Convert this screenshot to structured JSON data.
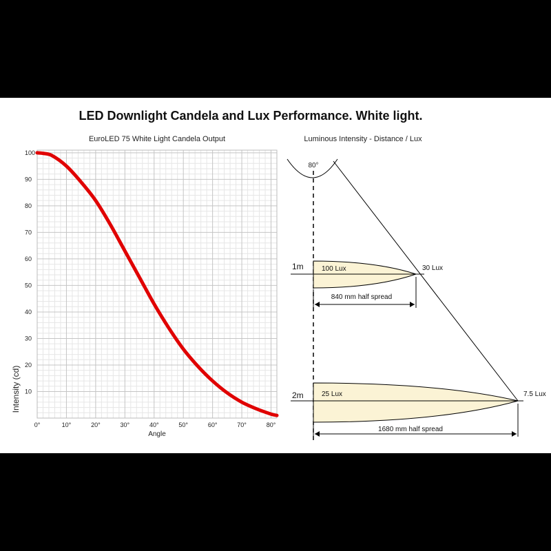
{
  "page_title": "LED Downlight Candela and Lux Performance. White light.",
  "chart_data": {
    "type": "line",
    "title": "EuroLED 75 White Light Candela Output",
    "xlabel": "Angle",
    "ylabel": "Intensity (cd)",
    "xlim": [
      0,
      82
    ],
    "ylim": [
      0,
      101
    ],
    "x_ticks": [
      0,
      10,
      20,
      30,
      40,
      50,
      60,
      70,
      80
    ],
    "x_tick_labels": [
      "0°",
      "10°",
      "20°",
      "30°",
      "40°",
      "50°",
      "60°",
      "70°",
      "80°"
    ],
    "y_ticks": [
      10,
      20,
      30,
      40,
      50,
      60,
      70,
      80,
      90,
      100
    ],
    "y_tick_labels": [
      "10",
      "20",
      "30",
      "40",
      "50",
      "60",
      "70",
      "80",
      "90",
      "100"
    ],
    "grid": true,
    "series": [
      {
        "color": "#e00000",
        "x": [
          0,
          2,
          5,
          10,
          15,
          20,
          25,
          30,
          35,
          40,
          45,
          50,
          55,
          60,
          65,
          70,
          75,
          80,
          82
        ],
        "y": [
          100,
          99.8,
          99,
          95,
          89,
          82,
          73,
          63,
          53,
          43,
          34,
          26,
          19.5,
          14,
          9.5,
          6,
          3.5,
          1.5,
          1
        ]
      }
    ]
  },
  "diagram": {
    "title": "Luminous Intensity - Distance / Lux",
    "beam_angle": "80°",
    "levels": [
      {
        "distance": "1m",
        "center_lux": "100 Lux",
        "edge_lux": "30 Lux",
        "spread": "840 mm half spread"
      },
      {
        "distance": "2m",
        "center_lux": "25 Lux",
        "edge_lux": "7.5 Lux",
        "spread": "1680 mm half spread"
      }
    ],
    "colors": {
      "beam_fill": "#fbf3d5",
      "line": "#000000"
    }
  }
}
